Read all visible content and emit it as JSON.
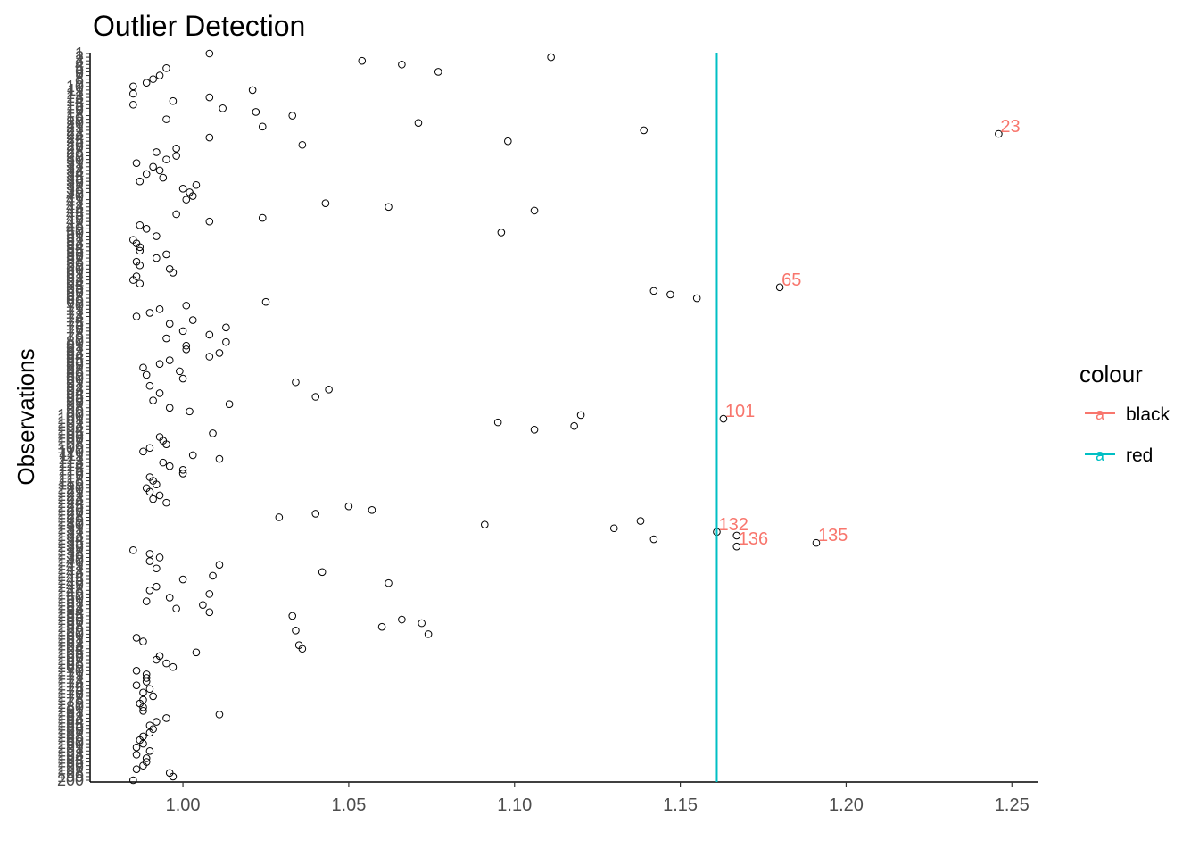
{
  "chart_data": {
    "type": "scatter",
    "title": "Outlier Detection",
    "xlabel": "",
    "ylabel": "Observations",
    "xlim": [
      0.972,
      1.258
    ],
    "ylim": [
      1,
      200
    ],
    "x_ticks": [
      "1.00",
      "1.05",
      "1.10",
      "1.15",
      "1.20",
      "1.25"
    ],
    "x_tick_values": [
      1.0,
      1.05,
      1.1,
      1.15,
      1.2,
      1.25
    ],
    "grid": false,
    "legend": {
      "title": "colour",
      "position": "right",
      "entries": [
        {
          "label": "black",
          "color": "#F8766D",
          "key_glyph": "a"
        },
        {
          "label": "red",
          "color": "#00BFC4",
          "key_glyph": "a"
        }
      ]
    },
    "threshold_line": {
      "x": 1.161,
      "color": "#00BFC4"
    },
    "label_color": "#F8766D",
    "point_style": {
      "shape": "open-circle",
      "color": "#000000"
    },
    "points": [
      [
        1.008,
        1
      ],
      [
        1.111,
        2
      ],
      [
        1.054,
        3
      ],
      [
        1.066,
        4
      ],
      [
        0.995,
        5
      ],
      [
        1.077,
        6
      ],
      [
        0.993,
        7
      ],
      [
        0.991,
        8
      ],
      [
        0.989,
        9
      ],
      [
        0.985,
        10
      ],
      [
        1.021,
        11
      ],
      [
        0.985,
        12
      ],
      [
        1.008,
        13
      ],
      [
        0.997,
        14
      ],
      [
        0.985,
        15
      ],
      [
        1.012,
        16
      ],
      [
        1.022,
        17
      ],
      [
        1.033,
        18
      ],
      [
        0.995,
        19
      ],
      [
        1.071,
        20
      ],
      [
        1.024,
        21
      ],
      [
        1.139,
        22
      ],
      [
        1.246,
        23
      ],
      [
        1.008,
        24
      ],
      [
        1.098,
        25
      ],
      [
        1.036,
        26
      ],
      [
        0.998,
        27
      ],
      [
        0.992,
        28
      ],
      [
        0.998,
        29
      ],
      [
        0.995,
        30
      ],
      [
        0.986,
        31
      ],
      [
        0.991,
        32
      ],
      [
        0.993,
        33
      ],
      [
        0.989,
        34
      ],
      [
        0.994,
        35
      ],
      [
        0.987,
        36
      ],
      [
        1.004,
        37
      ],
      [
        1.0,
        38
      ],
      [
        1.002,
        39
      ],
      [
        1.003,
        40
      ],
      [
        1.001,
        41
      ],
      [
        1.043,
        42
      ],
      [
        1.062,
        43
      ],
      [
        1.106,
        44
      ],
      [
        0.998,
        45
      ],
      [
        1.024,
        46
      ],
      [
        1.008,
        47
      ],
      [
        0.987,
        48
      ],
      [
        0.989,
        49
      ],
      [
        1.096,
        50
      ],
      [
        0.992,
        51
      ],
      [
        0.985,
        52
      ],
      [
        0.986,
        53
      ],
      [
        0.987,
        54
      ],
      [
        0.987,
        55
      ],
      [
        0.995,
        56
      ],
      [
        0.992,
        57
      ],
      [
        0.986,
        58
      ],
      [
        0.987,
        59
      ],
      [
        0.996,
        60
      ],
      [
        0.997,
        61
      ],
      [
        0.986,
        62
      ],
      [
        0.985,
        63
      ],
      [
        0.987,
        64
      ],
      [
        1.18,
        65
      ],
      [
        1.142,
        66
      ],
      [
        1.147,
        67
      ],
      [
        1.155,
        68
      ],
      [
        1.025,
        69
      ],
      [
        1.001,
        70
      ],
      [
        0.993,
        71
      ],
      [
        0.99,
        72
      ],
      [
        0.986,
        73
      ],
      [
        1.003,
        74
      ],
      [
        0.996,
        75
      ],
      [
        1.013,
        76
      ],
      [
        1.0,
        77
      ],
      [
        1.008,
        78
      ],
      [
        0.995,
        79
      ],
      [
        1.013,
        80
      ],
      [
        1.001,
        81
      ],
      [
        1.001,
        82
      ],
      [
        1.011,
        83
      ],
      [
        1.008,
        84
      ],
      [
        0.996,
        85
      ],
      [
        0.993,
        86
      ],
      [
        0.988,
        87
      ],
      [
        0.999,
        88
      ],
      [
        0.989,
        89
      ],
      [
        1.0,
        90
      ],
      [
        1.034,
        91
      ],
      [
        0.99,
        92
      ],
      [
        1.044,
        93
      ],
      [
        0.993,
        94
      ],
      [
        1.04,
        95
      ],
      [
        0.991,
        96
      ],
      [
        1.014,
        97
      ],
      [
        0.996,
        98
      ],
      [
        1.002,
        99
      ],
      [
        1.12,
        100
      ],
      [
        1.163,
        101
      ],
      [
        1.095,
        102
      ],
      [
        1.118,
        103
      ],
      [
        1.106,
        104
      ],
      [
        1.009,
        105
      ],
      [
        0.993,
        106
      ],
      [
        0.994,
        107
      ],
      [
        0.995,
        108
      ],
      [
        0.99,
        109
      ],
      [
        0.988,
        110
      ],
      [
        1.003,
        111
      ],
      [
        1.011,
        112
      ],
      [
        0.994,
        113
      ],
      [
        0.996,
        114
      ],
      [
        1.0,
        115
      ],
      [
        1.0,
        116
      ],
      [
        0.99,
        117
      ],
      [
        0.991,
        118
      ],
      [
        0.992,
        119
      ],
      [
        0.989,
        120
      ],
      [
        0.99,
        121
      ],
      [
        0.993,
        122
      ],
      [
        0.991,
        123
      ],
      [
        0.995,
        124
      ],
      [
        1.05,
        125
      ],
      [
        1.057,
        126
      ],
      [
        1.04,
        127
      ],
      [
        1.029,
        128
      ],
      [
        1.138,
        129
      ],
      [
        1.091,
        130
      ],
      [
        1.13,
        131
      ],
      [
        1.161,
        132
      ],
      [
        1.167,
        133
      ],
      [
        1.142,
        134
      ],
      [
        1.191,
        135
      ],
      [
        1.167,
        136
      ],
      [
        0.985,
        137
      ],
      [
        0.99,
        138
      ],
      [
        0.993,
        139
      ],
      [
        0.99,
        140
      ],
      [
        1.011,
        141
      ],
      [
        0.992,
        142
      ],
      [
        1.042,
        143
      ],
      [
        1.009,
        144
      ],
      [
        1.0,
        145
      ],
      [
        1.062,
        146
      ],
      [
        0.992,
        147
      ],
      [
        0.99,
        148
      ],
      [
        1.008,
        149
      ],
      [
        0.996,
        150
      ],
      [
        0.989,
        151
      ],
      [
        1.006,
        152
      ],
      [
        0.998,
        153
      ],
      [
        1.008,
        154
      ],
      [
        1.033,
        155
      ],
      [
        1.066,
        156
      ],
      [
        1.072,
        157
      ],
      [
        1.06,
        158
      ],
      [
        1.034,
        159
      ],
      [
        1.074,
        160
      ],
      [
        0.986,
        161
      ],
      [
        0.988,
        162
      ],
      [
        1.035,
        163
      ],
      [
        1.036,
        164
      ],
      [
        1.004,
        165
      ],
      [
        0.993,
        166
      ],
      [
        0.992,
        167
      ],
      [
        0.995,
        168
      ],
      [
        0.997,
        169
      ],
      [
        0.986,
        170
      ],
      [
        0.989,
        171
      ],
      [
        0.989,
        172
      ],
      [
        0.989,
        173
      ],
      [
        0.986,
        174
      ],
      [
        0.99,
        175
      ],
      [
        0.988,
        176
      ],
      [
        0.991,
        177
      ],
      [
        0.988,
        178
      ],
      [
        0.987,
        179
      ],
      [
        0.988,
        180
      ],
      [
        0.988,
        181
      ],
      [
        1.011,
        182
      ],
      [
        0.995,
        183
      ],
      [
        0.992,
        184
      ],
      [
        0.99,
        185
      ],
      [
        0.991,
        186
      ],
      [
        0.99,
        187
      ],
      [
        0.988,
        188
      ],
      [
        0.987,
        189
      ],
      [
        0.988,
        190
      ],
      [
        0.986,
        191
      ],
      [
        0.99,
        192
      ],
      [
        0.986,
        193
      ],
      [
        0.989,
        194
      ],
      [
        0.989,
        195
      ],
      [
        0.988,
        196
      ],
      [
        0.986,
        197
      ],
      [
        0.996,
        198
      ],
      [
        0.997,
        199
      ],
      [
        0.985,
        200
      ]
    ],
    "labeled_points": [
      {
        "label": "23",
        "index": 23
      },
      {
        "label": "65",
        "index": 65
      },
      {
        "label": "101",
        "index": 101
      },
      {
        "label": "132",
        "index": 132
      },
      {
        "label": "135",
        "index": 135
      },
      {
        "label": "136",
        "index": 136
      }
    ],
    "y_tick_labels": [
      "1",
      "2",
      "3",
      "4",
      "5",
      "6",
      "7",
      "8",
      "9",
      "10",
      "11",
      "12",
      "13",
      "14",
      "15",
      "16",
      "17",
      "18",
      "19",
      "20",
      "21",
      "22",
      "23",
      "24",
      "25",
      "26",
      "27",
      "28",
      "29",
      "30",
      "31",
      "32",
      "33",
      "34",
      "35",
      "36",
      "37",
      "38",
      "39",
      "40",
      "41",
      "42",
      "43",
      "44",
      "45",
      "46",
      "47",
      "48",
      "49",
      "50",
      "51",
      "52",
      "53",
      "54",
      "55",
      "56",
      "57",
      "58",
      "59",
      "60",
      "61",
      "62",
      "63",
      "64",
      "65",
      "66",
      "67",
      "68",
      "69",
      "70",
      "71",
      "72",
      "73",
      "74",
      "75",
      "76",
      "77",
      "78",
      "79",
      "80",
      "81",
      "82",
      "83",
      "84",
      "85",
      "86",
      "87",
      "88",
      "89",
      "90",
      "91",
      "92",
      "93",
      "94",
      "95",
      "96",
      "97",
      "98",
      "99",
      "100",
      "101",
      "102",
      "103",
      "104",
      "105",
      "106",
      "107",
      "108",
      "109",
      "110",
      "111",
      "112",
      "113",
      "114",
      "115",
      "116",
      "117",
      "118",
      "119",
      "120",
      "121",
      "122",
      "123",
      "124",
      "125",
      "126",
      "127",
      "128",
      "129",
      "130",
      "131",
      "132",
      "133",
      "134",
      "135",
      "136",
      "137",
      "138",
      "139",
      "140",
      "141",
      "142",
      "143",
      "144",
      "145",
      "146",
      "147",
      "148",
      "149",
      "150",
      "151",
      "152",
      "153",
      "154",
      "155",
      "156",
      "157",
      "158",
      "159",
      "160",
      "161",
      "162",
      "163",
      "164",
      "165",
      "166",
      "167",
      "168",
      "169",
      "170",
      "171",
      "172",
      "173",
      "174",
      "175",
      "176",
      "177",
      "178",
      "179",
      "180",
      "181",
      "182",
      "183",
      "184",
      "185",
      "186",
      "187",
      "188",
      "189",
      "190",
      "191",
      "192",
      "193",
      "194",
      "195",
      "196",
      "197",
      "198",
      "199",
      "200"
    ]
  }
}
